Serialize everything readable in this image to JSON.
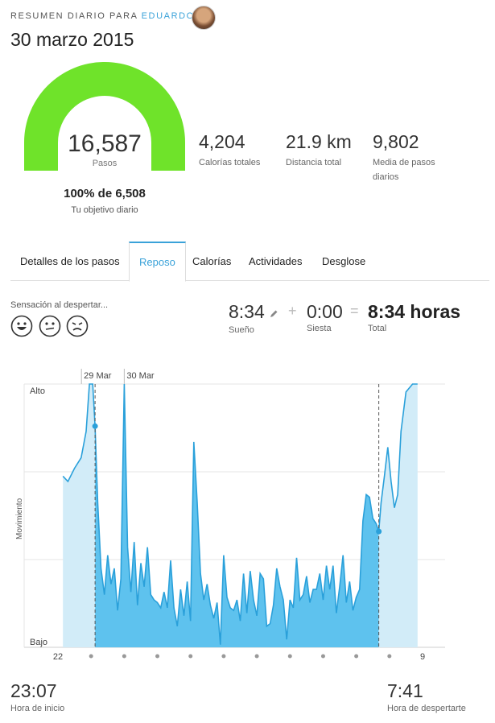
{
  "header": {
    "label": "RESUMEN DIARIO PARA",
    "user": "EDUARDO",
    "date": "30 marzo 2015"
  },
  "gauge": {
    "value": "16,587",
    "unit": "Pasos",
    "goal_pct_text": "100% de 6,508",
    "goal_label": "Tu objetivo diario",
    "fraction": 1.0,
    "color": "#6fe32a"
  },
  "stats": [
    {
      "value": "4,204",
      "label": "Calorías totales"
    },
    {
      "value": "21.9 km",
      "label": "Distancia total"
    },
    {
      "value": "9,802",
      "label": "Media de pasos diarios"
    }
  ],
  "tabs": [
    {
      "label": "Detalles de los pasos",
      "active": false
    },
    {
      "label": "Reposo",
      "active": true
    },
    {
      "label": "Calorías",
      "active": false
    },
    {
      "label": "Actividades",
      "active": false
    },
    {
      "label": "Desglose",
      "active": false
    }
  ],
  "wake_feeling": {
    "label": "Sensación al despertar...",
    "faces": [
      "happy-face-icon",
      "neutral-face-icon",
      "sad-face-icon"
    ]
  },
  "sleep_summary": {
    "sleep": {
      "value": "8:34",
      "label": "Sueño"
    },
    "nap": {
      "value": "0:00",
      "label": "Siesta"
    },
    "total": {
      "value": "8:34 horas",
      "label": "Total"
    }
  },
  "times": {
    "start": {
      "value": "23:07",
      "label": "Hora de inicio"
    },
    "wake": {
      "value": "7:41",
      "label": "Hora de despertarte"
    }
  },
  "accent_color": "#3aa2d9",
  "chart_data": {
    "type": "area",
    "ylabel": "Movimiento",
    "y_top_label": "Alto",
    "y_bottom_label": "Bajo",
    "date_labels": [
      {
        "text": "29 Mar",
        "hour": 23.0
      },
      {
        "text": "30 Mar",
        "hour": 24.0
      }
    ],
    "x_tick_labels": [
      {
        "text": "22",
        "hour": 22
      },
      {
        "text": "9",
        "hour": 33
      }
    ],
    "x_dot_hours": [
      23,
      24,
      25,
      26,
      27,
      28,
      29,
      30,
      31,
      32
    ],
    "xlim": [
      22,
      33
    ],
    "ylim": [
      0,
      100
    ],
    "sleep_start_hour": 23.12,
    "sleep_end_hour": 31.68,
    "colors": {
      "sleep": "#5ec2ee",
      "awake": "#d2ecf8",
      "line": "#2aa0da"
    },
    "series": [
      {
        "x": [
          22.15,
          22.3,
          22.5,
          22.7,
          22.85,
          22.95,
          23.05,
          23.12,
          23.2,
          23.3,
          23.4,
          23.5,
          23.6,
          23.7,
          23.8,
          23.9,
          24.0,
          24.1,
          24.2,
          24.3,
          24.4,
          24.5,
          24.6,
          24.7,
          24.8,
          24.9,
          25.0,
          25.1,
          25.2,
          25.3,
          25.4,
          25.5,
          25.6,
          25.7,
          25.8,
          25.9,
          26.0,
          26.1,
          26.2,
          26.3,
          26.4,
          26.5,
          26.6,
          26.7,
          26.8,
          26.9,
          27.0,
          27.1,
          27.2,
          27.3,
          27.4,
          27.5,
          27.6,
          27.7,
          27.8,
          27.9,
          28.0,
          28.1,
          28.2,
          28.3,
          28.4,
          28.5,
          28.6,
          28.7,
          28.8,
          28.9,
          29.0,
          29.1,
          29.2,
          29.3,
          29.4,
          29.5,
          29.6,
          29.7,
          29.8,
          29.9,
          30.0,
          30.1,
          30.2,
          30.3,
          30.4,
          30.5,
          30.6,
          30.7,
          30.8,
          30.9,
          31.0,
          31.1,
          31.2,
          31.3,
          31.4,
          31.5,
          31.6,
          31.68,
          31.75,
          31.85,
          31.95,
          32.05,
          32.15,
          32.25,
          32.35,
          32.5,
          32.7,
          32.85
        ],
        "y": [
          65,
          63,
          68,
          72,
          82,
          100,
          100,
          84,
          55,
          30,
          20,
          35,
          24,
          30,
          14,
          26,
          100,
          38,
          21,
          40,
          16,
          32,
          23,
          38,
          20,
          18,
          17,
          15,
          21,
          15,
          33,
          15,
          8,
          22,
          12,
          25,
          10,
          78,
          55,
          28,
          18,
          24,
          16,
          11,
          17,
          1,
          35,
          19,
          15,
          14,
          18,
          10,
          28,
          13,
          29,
          18,
          12,
          28,
          26,
          8,
          9,
          16,
          30,
          23,
          18,
          3,
          18,
          15,
          34,
          18,
          20,
          27,
          17,
          22,
          22,
          28,
          18,
          31,
          22,
          31,
          13,
          23,
          35,
          17,
          25,
          14,
          19,
          22,
          48,
          58,
          57,
          49,
          47,
          44,
          55,
          65,
          76,
          63,
          53,
          58,
          82,
          97,
          100,
          100
        ]
      }
    ]
  }
}
